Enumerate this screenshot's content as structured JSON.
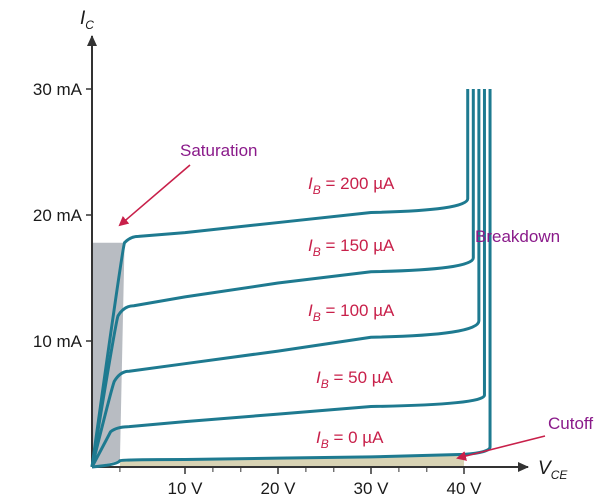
{
  "chart_data": {
    "type": "line",
    "title": "",
    "xlabel": {
      "main": "V",
      "sub": "CE"
    },
    "ylabel": {
      "main": "I",
      "sub": "C"
    },
    "x_unit": "V",
    "y_unit": "mA",
    "xlim": [
      0,
      45
    ],
    "ylim": [
      0,
      33
    ],
    "x_ticks": [
      {
        "value": 10,
        "label": "10 V"
      },
      {
        "value": 20,
        "label": "20 V"
      },
      {
        "value": 30,
        "label": "30 V"
      },
      {
        "value": 40,
        "label": "40 V"
      }
    ],
    "x_minor_ticks": [
      3,
      13,
      16,
      23,
      26,
      33,
      36
    ],
    "y_ticks": [
      {
        "value": 10,
        "label": "10 mA"
      },
      {
        "value": 20,
        "label": "20 mA"
      },
      {
        "value": 30,
        "label": "30 mA"
      }
    ],
    "grid": false,
    "series": [
      {
        "name": "I_B = 0 µA",
        "label_main": "I",
        "label_sub": "B",
        "label_rest": " = 0 µA",
        "x": [
          0,
          3,
          10,
          20,
          30,
          40,
          41.5,
          42.8,
          42.8
        ],
        "y": [
          0,
          0.5,
          0.6,
          0.7,
          0.8,
          1.0,
          1.6,
          4,
          30
        ]
      },
      {
        "name": "I_B = 50 µA",
        "label_main": "I",
        "label_sub": "B",
        "label_rest": " = 50 µA",
        "x": [
          0,
          2,
          4,
          10,
          20,
          30,
          40,
          42.2,
          42.2
        ],
        "y": [
          0,
          2.8,
          3.2,
          3.6,
          4.2,
          4.8,
          5.7,
          8,
          30
        ]
      },
      {
        "name": "I_B = 100 µA",
        "label_main": "I",
        "label_sub": "B",
        "label_rest": " = 100 µA",
        "x": [
          0,
          2.4,
          4,
          10,
          20,
          30,
          40,
          41.6,
          41.6
        ],
        "y": [
          0,
          6.8,
          7.6,
          8.2,
          9.2,
          10.3,
          11.6,
          14,
          30
        ]
      },
      {
        "name": "I_B = 150 µA",
        "label_main": "I",
        "label_sub": "B",
        "label_rest": " = 150 µA",
        "x": [
          0,
          2.8,
          4.5,
          10,
          20,
          30,
          40,
          41.0,
          41.0
        ],
        "y": [
          0,
          12,
          12.8,
          13.5,
          14.6,
          15.5,
          16.6,
          19,
          30
        ]
      },
      {
        "name": "I_B = 200 µA",
        "label_main": "I",
        "label_sub": "B",
        "label_rest": " = 200 µA",
        "x": [
          0,
          3.5,
          5,
          10,
          20,
          30,
          40,
          40.4,
          40.4
        ],
        "y": [
          0,
          17.8,
          18.3,
          18.6,
          19.4,
          20.2,
          21.3,
          23,
          30
        ]
      }
    ],
    "annotations": [
      {
        "id": "saturation",
        "text": "Saturation"
      },
      {
        "id": "breakdown",
        "text": "Breakdown"
      },
      {
        "id": "cutoff",
        "text": "Cutoff"
      }
    ],
    "colors": {
      "curve": "#1e7a90",
      "curve_label": "#c8204a",
      "region_label": "#8a1a8a",
      "saturation_fill": "#b8bcc2",
      "cutoff_fill": "#d8d3b4",
      "axis": "#222222"
    }
  }
}
